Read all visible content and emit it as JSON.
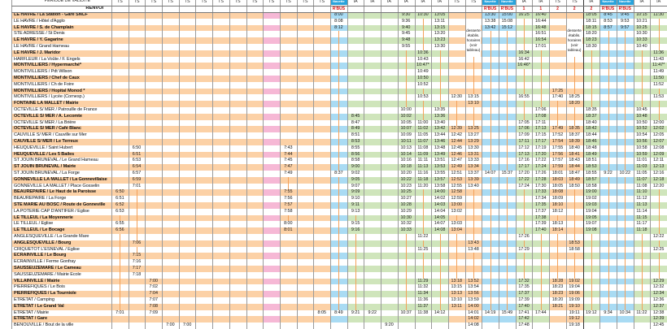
{
  "header": {
    "period_label": "PERIODE DE VALIDITE",
    "renvoi_label": "RENVOI",
    "navette_label": "Navette",
    "desserte_note": "desserte établis. horaires (voir tableau)"
  },
  "colors": {
    "ts": "#fcd1a6",
    "ia": "#cfe5bb",
    "rbus": "#a9dbf3",
    "pink": "#f6b8d5",
    "pass_line": "#f4a15a"
  },
  "stops": [
    "LE HAVRE / La Station - Gare SNCF",
    "LE HAVRE / Hôtel d'Agglo",
    "LE HAVRE / S. de Champlain",
    "STE ADRESSE / St Denis",
    "LE HAVRE / Y. Gagarine",
    "LE HAVRE / Grand Hameau",
    "LE HAVRE / J. Maridor",
    "HARFLEUR / La Voûte / F. Engels",
    "MONTIVILLIERS / Hypermarché*",
    "MONTIVILLIERS / Pdt Wilson",
    "MONTIVILLIERS / Chef de Caux",
    "MONTIVILLIERS / Ch de Foire",
    "MONTIVILLIERS / Hopital Monod *",
    "MONTIVILLIERS / Lycée (Cornesp.)",
    "FONTAINE LA MALLET / Mairie",
    "OCTEVILLE S/ MER / Patrouille de France",
    "OCTEVILLE S/ MER / A. Lecomte",
    "OCTEVILLE S/ MER / La Brière",
    "OCTEVILLE S/ MER / Café Blanc",
    "CAUVILLE S/ MER / Cauville sur Mer",
    "CAUVILLE S/ MER / Le Terreux",
    "HEUQUEVILLE / Saint Hubert",
    "HEUQUEVILLE / Les 5 Bailes",
    "ST JOUIN BRUNEVAL / Le Grand Hameau",
    "ST JOUIN BRUNEVAL / Mairie",
    "ST JOUIN BRUNEVAL / La Forge",
    "GONNEVILLE LA MALLET / La Gonnevillaise",
    "GONNEVILLE LA MALLET / Place Gosselin",
    "BEAUREPAIRE / Le Haut de la Paroisse",
    "BEAUREPAIRE / La Forge",
    "STE MARIE AU BOSC / Route de Gonneville",
    "LA POTERIE CAP D'ANTIFER / Eglise",
    "LE TILLEUL / La Moyennerie",
    "LE TILLEUL / Eglise",
    "LE TILLEUL / Le Bocage",
    "ANGLESQUEVILLE / La Grande Mare",
    "ANGLESQUEVILLE / Bourg",
    "CRIQUETOT L'ESNEVAL / Eglise",
    "ECRAINVILLE / Le Bourg",
    "ECRAINVILLE / Ferme Gonfray",
    "SAUSSEUZEMARE / Le Cameau",
    "SAUSSEUZEMARE / Mairie Ecole",
    "VILLAINVILLE / Mairie",
    "PIERREFIQUES / Le Bois",
    "PIERREFIQUES / La Tourniole",
    "ETRETAT / Camping",
    "ETRETAT / Le Grand Val",
    "ETRETAT / Mairie",
    "ETRETAT / Gare",
    "BENOUVILLE / Bout de la ville"
  ],
  "columns": [
    {
      "type": "ts",
      "period": "TS",
      "renvoi": "",
      "times": {
        "29": "6:50",
        "30": "6:51",
        "31": "6:52",
        "32": "6:53",
        "34": "6:55",
        "35": "6:56",
        "48": "7:01"
      }
    },
    {
      "type": "ts",
      "period": "TS",
      "renvoi": "",
      "times": {
        "22": "6:50",
        "23": "6:51",
        "24": "6:53",
        "25": "6:54",
        "26": "6:57",
        "27": "6:59",
        "28": "7:01",
        "37": "7:06",
        "39": "7:15",
        "40": "7:16",
        "41": "7:17",
        "42": "7:18"
      }
    },
    {
      "type": "ts",
      "period": "TS",
      "renvoi": "",
      "times": {
        "43": "7:00",
        "44": "7:02",
        "45": "7:04",
        "46": "7:07",
        "47": "7:08",
        "48": "7:09"
      }
    },
    {
      "type": "ts",
      "period": "TS",
      "renvoi": "",
      "times": {
        "50": "7:00"
      }
    },
    {
      "type": "ts",
      "period": "TS",
      "renvoi": "",
      "times": {
        "50": "7:00"
      }
    },
    {
      "type": "ts",
      "period": "TS",
      "renvoi": "",
      "times": {}
    },
    {
      "type": "ts",
      "period": "TS",
      "renvoi": "",
      "times": {}
    },
    {
      "type": "ts",
      "period": "TS",
      "renvoi": "",
      "times": {}
    },
    {
      "type": "ts",
      "period": "TS",
      "renvoi": "",
      "times": {}
    },
    {
      "type": "pink",
      "period": "TS",
      "renvoi": "",
      "times": {}
    },
    {
      "type": "ts",
      "period": "TS",
      "renvoi": "",
      "times": {
        "22": "7:43",
        "23": "7:44",
        "24": "7:45",
        "25": "7:47",
        "26": "7:49",
        "29": "7:55",
        "30": "7:56",
        "31": "7:57",
        "32": "7:58",
        "34": "8:00",
        "35": "8:01"
      }
    },
    {
      "type": "ts",
      "period": "TS",
      "renvoi": "",
      "times": {}
    },
    {
      "type": "ts",
      "period": "TS",
      "renvoi": "",
      "times": {
        "48": "8:05"
      }
    },
    {
      "type": "rbus",
      "period": "Navette",
      "renvoi": "R'BUS",
      "times": {
        "1": "8:00",
        "2": "8:08",
        "3": "8:12",
        "26": "8:37",
        "48": "8:49"
      }
    },
    {
      "type": "ia",
      "period": "IA",
      "renvoi": "",
      "times": {
        "17": "8:45",
        "18": "8:47",
        "19": "8:49",
        "20": "8:51",
        "21": "8:53",
        "22": "8:55",
        "23": "8:56",
        "24": "8:58",
        "25": "9:00",
        "26": "9:02",
        "27": "9:05",
        "28": "9:07",
        "29": "9:09",
        "30": "9:10",
        "31": "9:11",
        "32": "9:13",
        "34": "9:15",
        "35": "9:16",
        "48": "9:21"
      }
    },
    {
      "type": "ia",
      "period": "IA",
      "renvoi": "",
      "times": {
        "48": "9:22"
      }
    },
    {
      "type": "ia",
      "period": "IA",
      "renvoi": "",
      "times": {
        "50": "9:20"
      }
    },
    {
      "type": "ia",
      "period": "IA",
      "renvoi": "",
      "times": {
        "1": "9:30",
        "2": "9:36",
        "3": "9:40",
        "4": "9:45",
        "5": "9:48",
        "6": "9:55",
        "16": "10:00",
        "17": "10:02",
        "18": "10:05",
        "19": "10:07",
        "20": "10:09",
        "21": "10:11",
        "22": "10:13",
        "23": "10:14",
        "24": "10:16",
        "25": "10:18",
        "26": "10:20",
        "27": "10:22",
        "28": "10:23",
        "29": "10:25",
        "30": "10:27",
        "31": "10:28",
        "32": "10:29",
        "33": "10:30",
        "34": "10:32",
        "35": "10:33",
        "48": "10:37"
      }
    },
    {
      "type": "ia",
      "period": "IA",
      "renvoi": "",
      "times": {
        "1": "10:30",
        "7": "10:36",
        "8": "10:43",
        "9": "10:47*",
        "10": "10:49",
        "11": "10:50",
        "12": "10:52",
        "14": "10:53",
        "18": "11:00",
        "19": "11:02",
        "20": "11:05",
        "21": "11:07",
        "22": "11:08",
        "23": "11:09",
        "24": "11:11",
        "25": "11:13",
        "26": "11:16",
        "27": "11:18",
        "28": "11:20",
        "36": "11:22",
        "38": "11:25",
        "43": "11:29",
        "44": "11:32",
        "45": "11:34",
        "46": "11:36",
        "47": "11:37",
        "48": "11:38"
      }
    },
    {
      "type": "ia",
      "period": "IA",
      "renvoi": "",
      "times": {
        "1": "13:05",
        "2": "13:11",
        "3": "13:15",
        "4": "13:20",
        "5": "13:23",
        "6": "13:30",
        "16": "13:35",
        "17": "13:36",
        "18": "13:40",
        "19": "13:42",
        "20": "13:44",
        "21": "13:46",
        "22": "13:48",
        "23": "13:49",
        "24": "13:51",
        "25": "13:53",
        "26": "13:55",
        "27": "13:57",
        "28": "13:58",
        "29": "14:00",
        "30": "14:02",
        "31": "14:03",
        "32": "14:04",
        "33": "14:05",
        "34": "14:07",
        "35": "14:08",
        "48": "14:12"
      }
    },
    {
      "type": "ts",
      "period": "TS",
      "renvoi": "",
      "times": {
        "14": "12:30",
        "19": "12:39",
        "20": "12:42",
        "21": "12:44",
        "22": "12:45",
        "23": "12:46",
        "24": "12:47",
        "25": "12:49",
        "26": "12:51",
        "27": "12:53",
        "28": "12:55",
        "29": "12:58",
        "30": "12:59",
        "31": "13:00",
        "32": "13:02",
        "34": "13:03",
        "35": "13:04",
        "43": "13:18",
        "44": "13:15",
        "45": "13:13",
        "46": "13:10",
        "47": "13:11"
      }
    },
    {
      "type": "ts",
      "period": "TS",
      "renvoi": "",
      "desserte": true,
      "times": {
        "14": "13:15",
        "15": "13:10",
        "19": "13:25",
        "20": "13:27",
        "21": "13:29",
        "22": "13:30",
        "23": "13:31",
        "24": "13:33",
        "25": "13:34",
        "26": "13:37",
        "27": "13:39",
        "28": "13:40",
        "37": "13:43",
        "38": "13:48",
        "43": "13:52",
        "44": "13:54",
        "45": "13:56",
        "46": "13:59",
        "47": "14:00",
        "48": "14:01",
        "49": "14:02",
        "50": "14:08"
      }
    },
    {
      "type": "rbus",
      "period": "Navette",
      "renvoi": "R'BUS",
      "times": {
        "1": "13:30",
        "2": "13:38",
        "3": "13:42",
        "26": "14:07",
        "48": "14:19"
      }
    },
    {
      "type": "rbus",
      "period": "Navette",
      "renvoi": "R'BUS",
      "times": {
        "1": "15:00",
        "2": "15:08",
        "3": "15:12",
        "26": "15:37",
        "48": "15:49"
      }
    },
    {
      "type": "ia",
      "period": "IA",
      "renvoi": "1",
      "times": {
        "1": "16:25",
        "7": "16:34",
        "8": "16:42",
        "9": "16:46*",
        "14": "16:55",
        "18": "17:05",
        "19": "17:06",
        "20": "17:09",
        "21": "17:11",
        "22": "17:12",
        "23": "17:13",
        "24": "17:16",
        "25": "17:17",
        "26": "17:20",
        "27": "17:22",
        "28": "17:24",
        "36": "17:26",
        "38": "17:29",
        "43": "17:32",
        "44": "17:35",
        "45": "17:37",
        "46": "17:39",
        "47": "17:40",
        "48": "17:41",
        "49": "17:42",
        "50": "17:48"
      }
    },
    {
      "type": "ia",
      "period": "IA",
      "renvoi": "1",
      "times": {
        "1": "16:40",
        "2": "16:44",
        "3": "16:48",
        "4": "16:51",
        "5": "16:54",
        "6": "17:01",
        "16": "17:06",
        "17": "17:08",
        "18": "17:11",
        "19": "17:13",
        "20": "17:15",
        "21": "17:17",
        "22": "17:19",
        "23": "17:20",
        "24": "17:22",
        "25": "17:24",
        "26": "17:26",
        "27": "17:28",
        "28": "17:30",
        "29": "17:33",
        "30": "17:34",
        "31": "17:35",
        "32": "17:37",
        "33": "17:38",
        "34": "17:39",
        "35": "17:40",
        "48": "17:44"
      }
    },
    {
      "type": "ts",
      "period": "TS",
      "renvoi": "2",
      "times": {
        "13": "17:25",
        "14": "17:40",
        "19": "17:49",
        "20": "17:52",
        "21": "17:54",
        "22": "17:55",
        "23": "17:56",
        "24": "17:57",
        "25": "17:59",
        "26": "18:01",
        "27": "18:03",
        "28": "18:05",
        "29": "18:08",
        "30": "18:09",
        "31": "18:10",
        "32": "18:12",
        "34": "18:13",
        "35": "18:14",
        "43": "18:28",
        "44": "18:23",
        "45": "18:23",
        "46": "18:20",
        "47": "18:21"
      }
    },
    {
      "type": "ts",
      "period": "TS",
      "renvoi": "2",
      "desserte": true,
      "times": {
        "14": "18:25",
        "15": "18:20",
        "19": "18:35",
        "20": "18:37",
        "21": "18:39",
        "22": "18:40",
        "23": "18:41",
        "24": "18:43",
        "25": "18:44",
        "26": "18:47",
        "27": "18:49",
        "28": "18:50",
        "37": "18:53",
        "38": "18:58",
        "43": "19:02",
        "44": "19:04",
        "45": "19:06",
        "46": "19:09",
        "47": "19:10",
        "48": "19:11",
        "49": "19:12",
        "50": "19:18"
      }
    },
    {
      "type": "ia",
      "period": "IA",
      "renvoi": "2",
      "times": {
        "1": "18:05",
        "2": "18:11",
        "3": "18:15",
        "4": "18:20",
        "5": "18:23",
        "6": "18:30",
        "16": "18:35",
        "17": "18:37",
        "18": "18:40",
        "19": "18:42",
        "20": "18:44",
        "21": "18:46",
        "22": "18:48",
        "23": "18:49",
        "24": "18:51",
        "25": "18:53",
        "26": "18:55",
        "27": "18:57",
        "28": "18:58",
        "29": "19:00",
        "30": "19:02",
        "31": "19:03",
        "32": "19:04",
        "33": "19:05",
        "34": "19:07",
        "35": "19:08",
        "48": "19:12"
      }
    },
    {
      "type": "rbus",
      "period": "Navette",
      "renvoi": "R'BUS",
      "times": {
        "1": "8:45",
        "2": "8:53",
        "3": "8:57",
        "26": "9:22",
        "48": "9:34"
      }
    },
    {
      "type": "rbus",
      "period": "Navette",
      "renvoi": "R'BUS",
      "times": {
        "1": "9:45",
        "2": "9:53",
        "3": "9:57",
        "26": "10:22",
        "48": "10:34"
      }
    },
    {
      "type": "ia",
      "period": "IA",
      "renvoi": "",
      "times": {
        "1": "10:15",
        "2": "10:21",
        "3": "10:25",
        "4": "10:30",
        "5": "10:33",
        "6": "10:40",
        "16": "10:45",
        "17": "10:48",
        "18": "10:50",
        "19": "10:52",
        "20": "10:54",
        "21": "10:56",
        "22": "10:58",
        "23": "10:59",
        "24": "11:01",
        "25": "11:03",
        "26": "11:05",
        "27": "11:07",
        "28": "11:08",
        "29": "11:10",
        "30": "11:12",
        "31": "11:13",
        "32": "11:14",
        "33": "11:15",
        "34": "11:17",
        "35": "11:18",
        "48": "11:22"
      }
    },
    {
      "type": "ia",
      "period": "IA",
      "renvoi": "",
      "times": {
        "1": "11:30",
        "7": "11:36",
        "8": "11:43",
        "9": "11:47*",
        "10": "11:49",
        "11": "11:50",
        "12": "11:52",
        "14": "11:53",
        "18": "12:00",
        "19": "12:02",
        "20": "12:05",
        "21": "12:07",
        "22": "12:08",
        "23": "12:09",
        "24": "12:11",
        "25": "12:13",
        "26": "12:16",
        "27": "12:18",
        "28": "12:20",
        "36": "12:22",
        "38": "12:25",
        "43": "12:29",
        "44": "12:32",
        "45": "12:34",
        "46": "12:36",
        "47": "12:37",
        "48": "12:38",
        "49": "12:39",
        "50": "12:45"
      }
    }
  ]
}
